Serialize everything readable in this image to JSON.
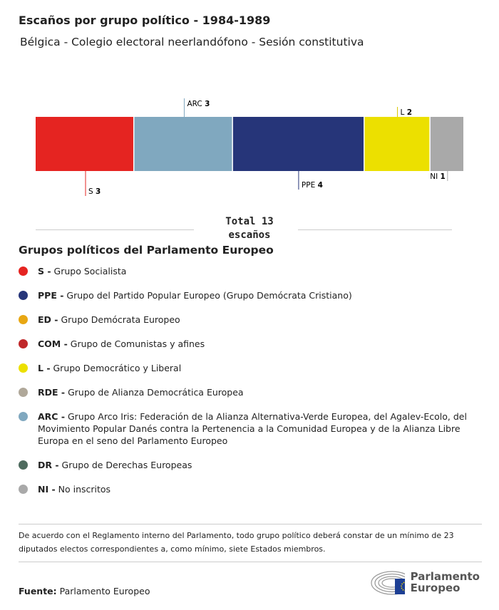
{
  "title": "Escaños por grupo político - 1984-1989",
  "subtitle": "Bélgica - Colegio electoral neerlandófono - Sesión constitutiva",
  "chart_data": {
    "type": "stacked-bar",
    "categories": [
      "S",
      "ARC",
      "PPE",
      "L",
      "NI"
    ],
    "values": [
      3,
      3,
      4,
      2,
      1
    ],
    "colors": [
      "#e52421",
      "#80a8bf",
      "#263579",
      "#ece000",
      "#a9a9a9"
    ],
    "total_line1": "Total 13",
    "total_line2": "escaños"
  },
  "legend": {
    "title": "Grupos políticos del Parlamento Europeo",
    "items": [
      {
        "abbr": "S -",
        "label": "Grupo Socialista",
        "color": "#e52421"
      },
      {
        "abbr": "PPE -",
        "label": "Grupo del Partido Popular Europeo (Grupo Demócrata Cristiano)",
        "color": "#263579"
      },
      {
        "abbr": "ED -",
        "label": "Grupo Demócrata Europeo",
        "color": "#e8a713"
      },
      {
        "abbr": "COM -",
        "label": "Grupo de Comunistas y afines",
        "color": "#c0282a"
      },
      {
        "abbr": "L -",
        "label": "Grupo Democrático y Liberal",
        "color": "#ece000"
      },
      {
        "abbr": "RDE -",
        "label": "Grupo de Alianza Democrática Europea",
        "color": "#b0a89a"
      },
      {
        "abbr": "ARC -",
        "label": "Grupo Arco Iris: Federación de la Alianza Alternativa-Verde Europea, del Agalev-Ecolo, del Movimiento Popular Danés contra la Pertenencia a la Comunidad Europea y de la Alianza Libre Europa en el seno del Parlamento Europeo",
        "color": "#80a8bf"
      },
      {
        "abbr": "DR -",
        "label": "Grupo de Derechas Europeas",
        "color": "#4e6b5e"
      },
      {
        "abbr": "NI -",
        "label": "No inscritos",
        "color": "#a9a9a9"
      }
    ]
  },
  "note": "De acuerdo con el Reglamento interno del Parlamento, todo grupo político deberá constar de un mínimo de 23 diputados electos correspondientes a, como mínimo, siete Estados miembros.",
  "source_label": "Fuente:",
  "source": "Parlamento Europeo",
  "logo_text": "Parlamento Europeo"
}
